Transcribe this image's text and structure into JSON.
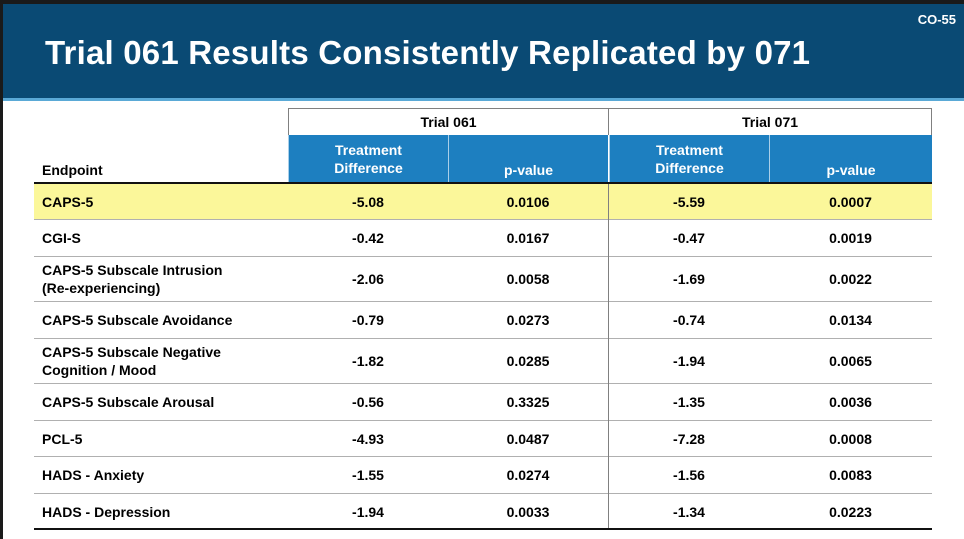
{
  "slide_code": "CO-55",
  "title": "Trial 061 Results Consistently Replicated by 071",
  "table": {
    "endpoint_header": "Endpoint",
    "groups": [
      "Trial 061",
      "Trial 071"
    ],
    "sub_headers": {
      "treatment_difference": "Treatment\nDifference",
      "p_value": "p-value"
    },
    "rows": [
      {
        "endpoint": "CAPS-5",
        "t061_diff": "-5.08",
        "t061_p": "0.0106",
        "t071_diff": "-5.59",
        "t071_p": "0.0007",
        "highlight": true
      },
      {
        "endpoint": "CGI-S",
        "t061_diff": "-0.42",
        "t061_p": "0.0167",
        "t071_diff": "-0.47",
        "t071_p": "0.0019"
      },
      {
        "endpoint": "CAPS-5 Subscale Intrusion\n(Re-experiencing)",
        "t061_diff": "-2.06",
        "t061_p": "0.0058",
        "t071_diff": "-1.69",
        "t071_p": "0.0022"
      },
      {
        "endpoint": "CAPS-5 Subscale Avoidance",
        "t061_diff": "-0.79",
        "t061_p": "0.0273",
        "t071_diff": "-0.74",
        "t071_p": "0.0134"
      },
      {
        "endpoint": "CAPS-5 Subscale Negative\nCognition / Mood",
        "t061_diff": "-1.82",
        "t061_p": "0.0285",
        "t071_diff": "-1.94",
        "t071_p": "0.0065"
      },
      {
        "endpoint": "CAPS-5 Subscale Arousal",
        "t061_diff": "-0.56",
        "t061_p": "0.3325",
        "t071_diff": "-1.35",
        "t071_p": "0.0036"
      },
      {
        "endpoint": "PCL-5",
        "t061_diff": "-4.93",
        "t061_p": "0.0487",
        "t071_diff": "-7.28",
        "t071_p": "0.0008"
      },
      {
        "endpoint": "HADS - Anxiety",
        "t061_diff": "-1.55",
        "t061_p": "0.0274",
        "t071_diff": "-1.56",
        "t071_p": "0.0083"
      },
      {
        "endpoint": "HADS - Depression",
        "t061_diff": "-1.94",
        "t061_p": "0.0033",
        "t071_diff": "-1.34",
        "t071_p": "0.0223"
      }
    ]
  },
  "colors": {
    "header_bg": "#0a4a74",
    "subheader_bg": "#1d7fc0",
    "highlight_row": "#fbf79a"
  }
}
